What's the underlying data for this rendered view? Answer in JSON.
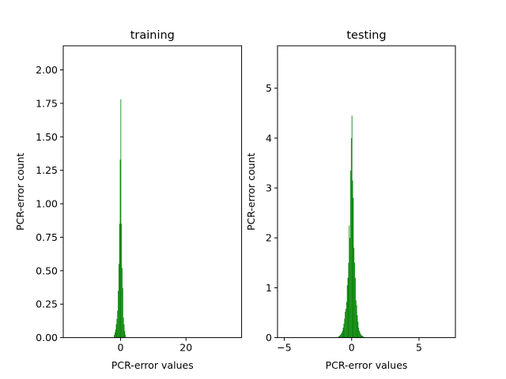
{
  "chart_data": [
    {
      "type": "bar",
      "title": "training",
      "xlabel": "PCR-error values",
      "ylabel": "PCR-error count",
      "xlim": [
        -17.5,
        37.0
      ],
      "ylim": [
        0,
        2.18
      ],
      "xticks": [
        0,
        20
      ],
      "xtick_labels": [
        "0",
        "20"
      ],
      "yticks": [
        0,
        0.25,
        0.5,
        0.75,
        1.0,
        1.25,
        1.5,
        1.75,
        2.0
      ],
      "ytick_labels": [
        "0.00",
        "0.25",
        "0.50",
        "0.75",
        "1.00",
        "1.25",
        "1.50",
        "1.75",
        "2.00"
      ],
      "bin_width": 0.2,
      "x": [
        -2.0,
        -1.8,
        -1.6,
        -1.4,
        -1.2,
        -1.0,
        -0.8,
        -0.6,
        -0.4,
        -0.2,
        0.0,
        0.2,
        0.4,
        0.6,
        0.8,
        1.0,
        1.2,
        1.4
      ],
      "values": [
        0.02,
        0.04,
        0.06,
        0.1,
        0.14,
        0.2,
        0.35,
        0.55,
        0.85,
        1.33,
        1.78,
        0.85,
        0.52,
        0.37,
        0.15,
        0.1,
        0.05,
        0.02
      ],
      "color": "#008000",
      "grid": false
    },
    {
      "type": "bar",
      "title": "testing",
      "xlabel": "PCR-error values",
      "ylabel": "PCR-error count",
      "xlim": [
        -5.5,
        7.7
      ],
      "ylim": [
        0,
        5.85
      ],
      "xticks": [
        -5,
        0,
        5
      ],
      "xtick_labels": [
        "−5",
        "0",
        "5"
      ],
      "yticks": [
        0,
        1,
        2,
        3,
        4,
        5
      ],
      "ytick_labels": [
        "0",
        "1",
        "2",
        "3",
        "4",
        "5"
      ],
      "bin_width": 0.05,
      "x": [
        -1.0,
        -0.95,
        -0.9,
        -0.85,
        -0.8,
        -0.75,
        -0.7,
        -0.65,
        -0.6,
        -0.55,
        -0.5,
        -0.45,
        -0.4,
        -0.35,
        -0.3,
        -0.25,
        -0.2,
        -0.15,
        -0.1,
        -0.05,
        0.0,
        0.05,
        0.1,
        0.15,
        0.2,
        0.25,
        0.3,
        0.35,
        0.4,
        0.45,
        0.5,
        0.55,
        0.6,
        0.65,
        0.7,
        0.75,
        0.8,
        0.85,
        0.9,
        0.95
      ],
      "values": [
        0.02,
        0.03,
        0.04,
        0.06,
        0.08,
        0.1,
        0.14,
        0.2,
        0.28,
        0.38,
        0.52,
        0.58,
        0.72,
        1.05,
        1.2,
        1.5,
        2.25,
        2.0,
        3.35,
        4.0,
        4.45,
        3.15,
        2.8,
        1.8,
        1.5,
        1.2,
        0.75,
        0.65,
        0.45,
        0.32,
        0.2,
        0.14,
        0.1,
        0.07,
        0.05,
        0.04,
        0.03,
        0.02,
        0.01,
        0.01
      ],
      "color": "#008000",
      "grid": false
    }
  ]
}
